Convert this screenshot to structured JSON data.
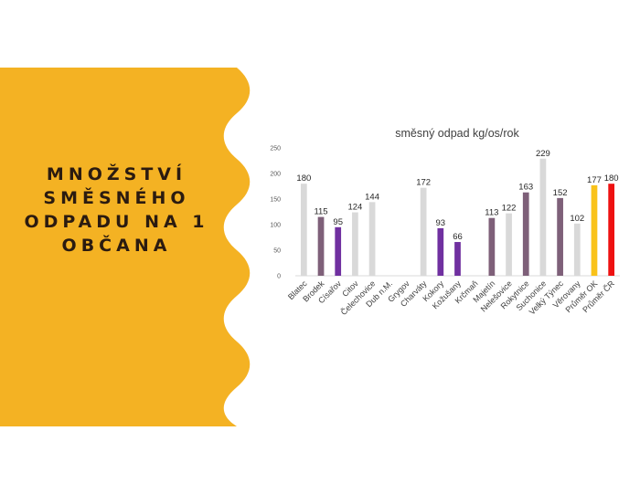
{
  "slide": {
    "title_lines": [
      "MNOŽSTVÍ",
      "SMĚSNÉHO",
      "ODPADU NA 1",
      "OBČANA"
    ],
    "panel_color": "#F4B223"
  },
  "chart_data": {
    "type": "bar",
    "title": "směsný odpad kg/os/rok",
    "xlabel": "",
    "ylabel": "",
    "ylim": [
      0,
      250
    ],
    "yticks": [
      0,
      50,
      100,
      150,
      200,
      250
    ],
    "grid": false,
    "legend": "none",
    "categories": [
      "Blatec",
      "Brodek",
      "Císařov",
      "Citov",
      "Čelechovice",
      "Dub n.M.",
      "Grygov",
      "Charváty",
      "Kokory",
      "Kožušany",
      "Krčmaň",
      "Majetín",
      "Nelešovice",
      "Rokytnice",
      "Suchonice",
      "Velký Týnec",
      "Věrovany",
      "Průměr OK",
      "Průměr ČR"
    ],
    "values": [
      180,
      115,
      95,
      124,
      144,
      null,
      null,
      172,
      93,
      66,
      null,
      113,
      122,
      163,
      229,
      152,
      102,
      177,
      180
    ],
    "colors": [
      "#D9D9D9",
      "#7E6079",
      "#7030A0",
      "#D9D9D9",
      "#D9D9D9",
      "#D9D9D9",
      "#D9D9D9",
      "#D9D9D9",
      "#7030A0",
      "#7030A0",
      "#D9D9D9",
      "#7E6079",
      "#D9D9D9",
      "#7E6079",
      "#D9D9D9",
      "#7E6079",
      "#D9D9D9",
      "#F9C21A",
      "#EE1111"
    ]
  }
}
